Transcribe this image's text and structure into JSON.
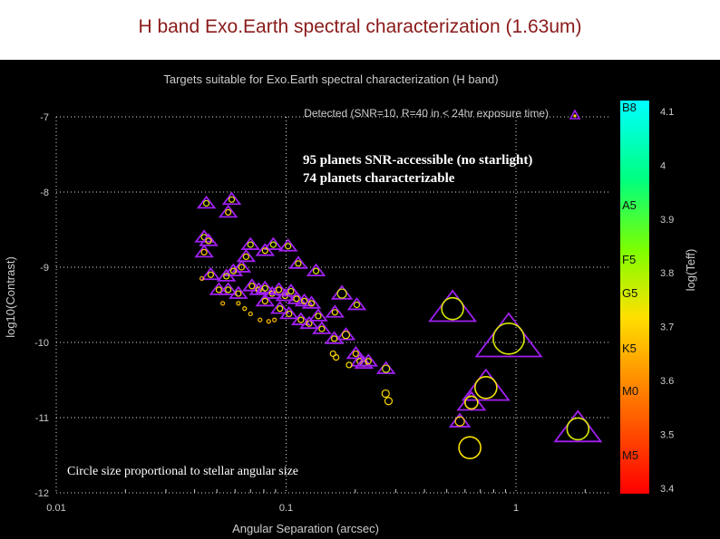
{
  "slide": {
    "title": "H band Exo.Earth spectral characterization (1.63um)"
  },
  "colors": {
    "title": "#8b1a1a",
    "background": "#000000",
    "axis_text": "#cccccc",
    "annotation": "#ffffff",
    "triangle": "#a020f0",
    "marker": "#a020f0"
  },
  "chart_data": {
    "type": "scatter",
    "title": "Targets suitable for Exo.Earth spectral characterization (H band)",
    "xlabel": "Angular Separation (arcsec)",
    "ylabel": "log10(Contrast)",
    "xscale": "log",
    "xlim": [
      0.01,
      3
    ],
    "ylim": [
      -12,
      -6.8
    ],
    "xticks": [
      {
        "value": 0.01,
        "label": "0.01"
      },
      {
        "value": 0.1,
        "label": "0.1"
      },
      {
        "value": 1,
        "label": "1"
      }
    ],
    "yticks": [
      -7,
      -8,
      -9,
      -10,
      -11,
      -12
    ],
    "grid": true,
    "legend": {
      "label": "Detected (SNR=10, R=40 in < 24hr exposure time)",
      "placement": "top-right"
    },
    "annotations": [
      "95  planets SNR-accessible (no starlight)",
      "74 planets characterizable",
      "Circle size proportional to stellar angular size"
    ],
    "colorbar": {
      "label": "log(Teff)",
      "values": [
        4.1,
        4,
        3.9,
        3.8,
        3.7,
        3.6,
        3.5,
        3.4
      ],
      "spectral_types": [
        "B8",
        "A5",
        "F5",
        "G5",
        "K5",
        "M0",
        "M5"
      ]
    },
    "points": [
      {
        "x": 0.045,
        "y": -8.15,
        "teff": 3.75,
        "size": 3,
        "char": true
      },
      {
        "x": 0.058,
        "y": -8.1,
        "teff": 3.74,
        "size": 3,
        "char": true
      },
      {
        "x": 0.056,
        "y": -8.27,
        "teff": 3.7,
        "size": 3,
        "char": true
      },
      {
        "x": 0.044,
        "y": -8.6,
        "teff": 3.75,
        "size": 3,
        "char": true
      },
      {
        "x": 0.046,
        "y": -8.65,
        "teff": 3.72,
        "size": 3,
        "char": true
      },
      {
        "x": 0.044,
        "y": -8.8,
        "teff": 3.68,
        "size": 3,
        "char": true
      },
      {
        "x": 0.07,
        "y": -8.7,
        "teff": 3.75,
        "size": 3,
        "char": true
      },
      {
        "x": 0.088,
        "y": -8.7,
        "teff": 3.76,
        "size": 3,
        "char": true
      },
      {
        "x": 0.081,
        "y": -8.78,
        "teff": 3.72,
        "size": 3,
        "char": true
      },
      {
        "x": 0.102,
        "y": -8.72,
        "teff": 3.74,
        "size": 3,
        "char": true
      },
      {
        "x": 0.067,
        "y": -8.86,
        "teff": 3.72,
        "size": 3,
        "char": true
      },
      {
        "x": 0.113,
        "y": -8.95,
        "teff": 3.73,
        "size": 3,
        "char": true
      },
      {
        "x": 0.064,
        "y": -9.0,
        "teff": 3.7,
        "size": 3,
        "char": true
      },
      {
        "x": 0.047,
        "y": -9.1,
        "teff": 3.72,
        "size": 3,
        "char": true
      },
      {
        "x": 0.059,
        "y": -9.05,
        "teff": 3.72,
        "size": 3,
        "char": true
      },
      {
        "x": 0.055,
        "y": -9.12,
        "teff": 3.75,
        "size": 3,
        "char": true
      },
      {
        "x": 0.135,
        "y": -9.05,
        "teff": 3.75,
        "size": 3,
        "char": true
      },
      {
        "x": 0.051,
        "y": -9.3,
        "teff": 3.72,
        "size": 3,
        "char": true
      },
      {
        "x": 0.056,
        "y": -9.3,
        "teff": 3.74,
        "size": 3,
        "char": true
      },
      {
        "x": 0.062,
        "y": -9.35,
        "teff": 3.72,
        "size": 3,
        "char": true
      },
      {
        "x": 0.071,
        "y": -9.25,
        "teff": 3.7,
        "size": 3,
        "char": true
      },
      {
        "x": 0.076,
        "y": -9.3,
        "teff": 3.72,
        "size": 3,
        "char": true
      },
      {
        "x": 0.081,
        "y": -9.28,
        "teff": 3.74,
        "size": 3,
        "char": true
      },
      {
        "x": 0.087,
        "y": -9.35,
        "teff": 3.72,
        "size": 3,
        "char": true
      },
      {
        "x": 0.093,
        "y": -9.3,
        "teff": 3.71,
        "size": 3,
        "char": true
      },
      {
        "x": 0.099,
        "y": -9.38,
        "teff": 3.72,
        "size": 3,
        "char": true
      },
      {
        "x": 0.105,
        "y": -9.32,
        "teff": 3.74,
        "size": 3,
        "char": true
      },
      {
        "x": 0.111,
        "y": -9.42,
        "teff": 3.72,
        "size": 3,
        "char": true
      },
      {
        "x": 0.12,
        "y": -9.45,
        "teff": 3.72,
        "size": 3,
        "char": true
      },
      {
        "x": 0.129,
        "y": -9.48,
        "teff": 3.72,
        "size": 3,
        "char": true
      },
      {
        "x": 0.081,
        "y": -9.45,
        "teff": 3.7,
        "size": 3,
        "char": true
      },
      {
        "x": 0.094,
        "y": -9.55,
        "teff": 3.72,
        "size": 3,
        "char": true
      },
      {
        "x": 0.103,
        "y": -9.62,
        "teff": 3.73,
        "size": 3,
        "char": true
      },
      {
        "x": 0.116,
        "y": -9.7,
        "teff": 3.72,
        "size": 3,
        "char": true
      },
      {
        "x": 0.126,
        "y": -9.75,
        "teff": 3.72,
        "size": 3,
        "char": true
      },
      {
        "x": 0.138,
        "y": -9.65,
        "teff": 3.74,
        "size": 3,
        "char": true
      },
      {
        "x": 0.143,
        "y": -9.82,
        "teff": 3.72,
        "size": 3,
        "char": true
      },
      {
        "x": 0.163,
        "y": -9.6,
        "teff": 3.72,
        "size": 3,
        "char": true
      },
      {
        "x": 0.175,
        "y": -9.35,
        "teff": 3.75,
        "size": 5,
        "char": true
      },
      {
        "x": 0.203,
        "y": -9.5,
        "teff": 3.74,
        "size": 3,
        "char": true
      },
      {
        "x": 0.182,
        "y": -9.9,
        "teff": 3.72,
        "size": 4,
        "char": true
      },
      {
        "x": 0.162,
        "y": -9.95,
        "teff": 3.72,
        "size": 3,
        "char": true
      },
      {
        "x": 0.201,
        "y": -10.15,
        "teff": 3.7,
        "size": 3,
        "char": true
      },
      {
        "x": 0.209,
        "y": -10.25,
        "teff": 3.72,
        "size": 3,
        "char": true
      },
      {
        "x": 0.218,
        "y": -10.28,
        "teff": 3.72,
        "size": 3,
        "char": true
      },
      {
        "x": 0.228,
        "y": -10.25,
        "teff": 3.72,
        "size": 3,
        "char": true
      },
      {
        "x": 0.272,
        "y": -10.35,
        "teff": 3.75,
        "size": 4,
        "char": true
      },
      {
        "x": 0.53,
        "y": -9.55,
        "teff": 3.75,
        "size": 12,
        "char": true
      },
      {
        "x": 0.93,
        "y": -9.95,
        "teff": 3.75,
        "size": 17,
        "char": true
      },
      {
        "x": 0.74,
        "y": -10.6,
        "teff": 3.73,
        "size": 12,
        "char": true
      },
      {
        "x": 0.64,
        "y": -10.8,
        "teff": 3.72,
        "size": 7,
        "char": true
      },
      {
        "x": 0.57,
        "y": -11.05,
        "teff": 3.7,
        "size": 5,
        "char": true
      },
      {
        "x": 1.86,
        "y": -11.15,
        "teff": 3.75,
        "size": 12,
        "char": true
      },
      {
        "x": 0.062,
        "y": -9.48,
        "teff": 3.68,
        "size": 2,
        "char": false
      },
      {
        "x": 0.066,
        "y": -9.55,
        "teff": 3.68,
        "size": 2,
        "char": false
      },
      {
        "x": 0.07,
        "y": -9.62,
        "teff": 3.68,
        "size": 2,
        "char": false
      },
      {
        "x": 0.077,
        "y": -9.7,
        "teff": 3.66,
        "size": 2,
        "char": false
      },
      {
        "x": 0.084,
        "y": -9.72,
        "teff": 3.66,
        "size": 2,
        "char": false
      },
      {
        "x": 0.089,
        "y": -9.7,
        "teff": 3.66,
        "size": 2,
        "char": false
      },
      {
        "x": 0.053,
        "y": -9.48,
        "teff": 3.66,
        "size": 2,
        "char": false
      },
      {
        "x": 0.043,
        "y": -9.15,
        "teff": 3.66,
        "size": 2,
        "char": false
      },
      {
        "x": 0.16,
        "y": -10.15,
        "teff": 3.7,
        "size": 3,
        "char": false
      },
      {
        "x": 0.165,
        "y": -10.2,
        "teff": 3.7,
        "size": 3,
        "char": false
      },
      {
        "x": 0.188,
        "y": -10.3,
        "teff": 3.72,
        "size": 3,
        "char": false
      },
      {
        "x": 0.271,
        "y": -10.68,
        "teff": 3.7,
        "size": 4,
        "char": false
      },
      {
        "x": 0.279,
        "y": -10.78,
        "teff": 3.7,
        "size": 4,
        "char": false
      },
      {
        "x": 0.63,
        "y": -11.4,
        "teff": 3.72,
        "size": 12,
        "char": false
      }
    ]
  }
}
